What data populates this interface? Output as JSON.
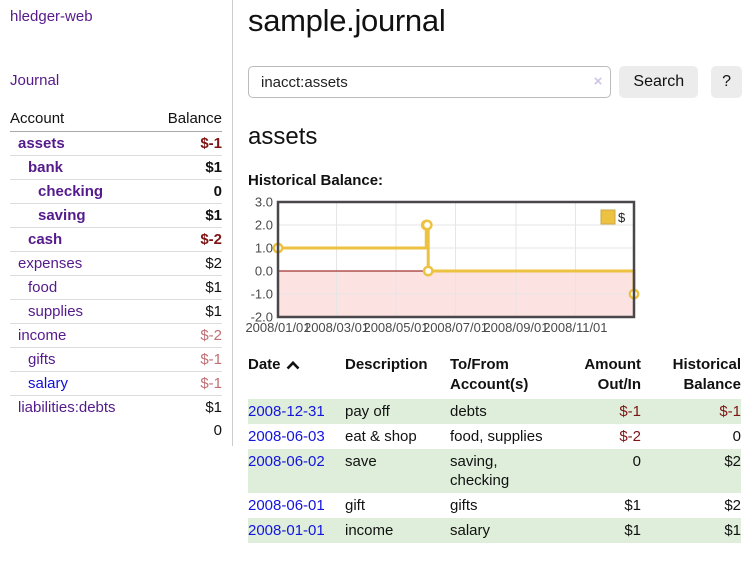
{
  "brand": "hledger-web",
  "sidebar": {
    "journal_link": "Journal",
    "accounts_table": {
      "headers": {
        "account": "Account",
        "balance": "Balance"
      },
      "rows": [
        {
          "name": "assets",
          "depth": 1,
          "balance": "$-1",
          "bold": true,
          "neg": "strong",
          "link": "purple"
        },
        {
          "name": "bank",
          "depth": 2,
          "balance": "$1",
          "bold": true,
          "neg": "none",
          "link": "purple"
        },
        {
          "name": "checking",
          "depth": 3,
          "balance": "0",
          "bold": true,
          "neg": "none",
          "link": "purple"
        },
        {
          "name": "saving",
          "depth": 3,
          "balance": "$1",
          "bold": true,
          "neg": "none",
          "link": "purple"
        },
        {
          "name": "cash",
          "depth": 2,
          "balance": "$-2",
          "bold": true,
          "neg": "strong",
          "link": "purple"
        },
        {
          "name": "expenses",
          "depth": 1,
          "balance": "$2",
          "bold": false,
          "neg": "none",
          "link": "purple"
        },
        {
          "name": "food",
          "depth": 2,
          "balance": "$1",
          "bold": false,
          "neg": "none",
          "link": "purple"
        },
        {
          "name": "supplies",
          "depth": 2,
          "balance": "$1",
          "bold": false,
          "neg": "none",
          "link": "purple"
        },
        {
          "name": "income",
          "depth": 1,
          "balance": "$-2",
          "bold": false,
          "neg": "soft",
          "link": "purple"
        },
        {
          "name": "gifts",
          "depth": 2,
          "balance": "$-1",
          "bold": false,
          "neg": "soft",
          "link": "purple"
        },
        {
          "name": "salary",
          "depth": 2,
          "balance": "$-1",
          "bold": false,
          "neg": "soft",
          "link": "blue"
        },
        {
          "name": "liabilities:debts",
          "depth": 1,
          "balance": "$1",
          "bold": false,
          "neg": "none",
          "link": "purple"
        }
      ],
      "total": "0"
    }
  },
  "main": {
    "title": "sample.journal",
    "search": {
      "value": "inacct:assets",
      "clear_icon": "×",
      "button_label": "Search",
      "help_label": "?"
    },
    "account_heading": "assets",
    "chart_label": "Historical Balance:"
  },
  "chart_data": {
    "type": "line",
    "title": "Historical Balance:",
    "step": true,
    "series": [
      {
        "name": "$",
        "color": "#edc240",
        "points": [
          {
            "date": "2008-01-01",
            "day": 0,
            "y": 1
          },
          {
            "date": "2008-06-01",
            "day": 152,
            "y": 2
          },
          {
            "date": "2008-06-02",
            "day": 153,
            "y": 2
          },
          {
            "date": "2008-06-03",
            "day": 154,
            "y": 0
          },
          {
            "date": "2008-12-31",
            "day": 365,
            "y": -1
          }
        ]
      }
    ],
    "ylim": [
      -2,
      3
    ],
    "yticks": [
      "3.0",
      "2.0",
      "1.0",
      "0.0",
      "-1.0",
      "-2.0"
    ],
    "xticks": [
      {
        "label": "2008/01/01",
        "day": 0
      },
      {
        "label": "2008/03/01",
        "day": 60
      },
      {
        "label": "2008/05/01",
        "day": 121
      },
      {
        "label": "2008/07/01",
        "day": 182
      },
      {
        "label": "2008/09/01",
        "day": 244
      },
      {
        "label": "2008/11/01",
        "day": 305
      }
    ],
    "xlim_days": [
      0,
      365
    ],
    "legend": {
      "label": "$",
      "position": "top-right"
    },
    "grid": true,
    "colors": {
      "series": "#edc240",
      "negative_region_fill": "#fde2e2",
      "zero_line": "#8b0000",
      "border": "#4a474b",
      "gridline": "#e6e6e6",
      "tick_text": "#4a4a4a"
    }
  },
  "register_table": {
    "headers": {
      "date": "Date",
      "description": "Description",
      "accounts": "To/From Account(s)",
      "amount": "Amount Out/In",
      "balance": "Historical Balance"
    },
    "rows": [
      {
        "date": "2008-12-31",
        "description": "pay off",
        "accounts": "debts",
        "amount": "$-1",
        "balance": "$-1",
        "amount_neg": true,
        "balance_neg": true,
        "shaded": true
      },
      {
        "date": "2008-06-03",
        "description": "eat & shop",
        "accounts": "food, supplies",
        "amount": "$-2",
        "balance": "0",
        "amount_neg": true,
        "balance_neg": false,
        "shaded": false
      },
      {
        "date": "2008-06-02",
        "description": "save",
        "accounts": "saving, checking",
        "amount": "0",
        "balance": "$2",
        "amount_neg": false,
        "balance_neg": false,
        "shaded": true
      },
      {
        "date": "2008-06-01",
        "description": "gift",
        "accounts": "gifts",
        "amount": "$1",
        "balance": "$2",
        "amount_neg": false,
        "balance_neg": false,
        "shaded": false
      },
      {
        "date": "2008-01-01",
        "description": "income",
        "accounts": "salary",
        "amount": "$1",
        "balance": "$1",
        "amount_neg": false,
        "balance_neg": false,
        "shaded": true
      }
    ]
  }
}
